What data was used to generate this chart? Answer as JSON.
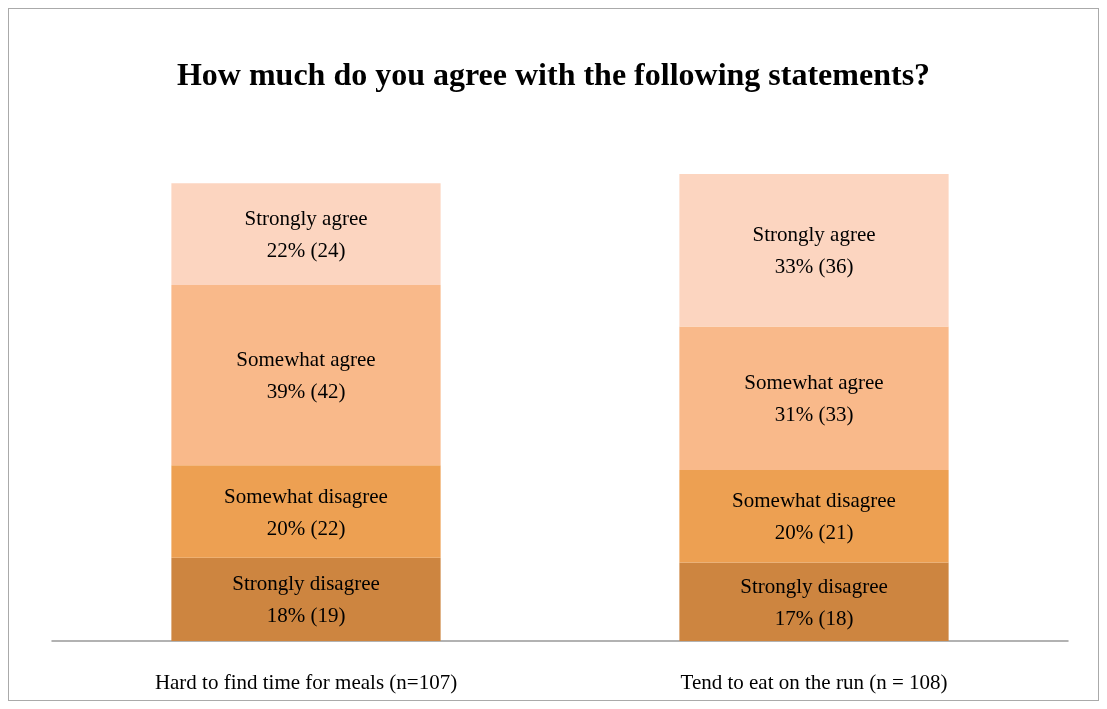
{
  "chart_data": {
    "type": "bar",
    "stacked": true,
    "title": "How much do you agree with the following statements?",
    "categories": [
      "Hard to find time for meals (n=107)",
      "Tend to eat on the run (n = 108)"
    ],
    "series": [
      {
        "name": "Strongly disagree",
        "color": "#cd8540",
        "values": [
          18,
          17
        ],
        "value_labels": [
          "18% (19)",
          "17% (18)"
        ]
      },
      {
        "name": "Somewhat disagree",
        "color": "#eda052",
        "values": [
          20,
          20
        ],
        "value_labels": [
          "20% (22)",
          "20% (21)"
        ]
      },
      {
        "name": "Somewhat agree",
        "color": "#f9b98a",
        "values": [
          39,
          31
        ],
        "value_labels": [
          "39% (42)",
          "31% (33)"
        ]
      },
      {
        "name": "Strongly agree",
        "color": "#fcd5c0",
        "values": [
          22,
          33
        ],
        "value_labels": [
          "22% (24)",
          "33% (36)"
        ]
      }
    ],
    "legend": false
  }
}
